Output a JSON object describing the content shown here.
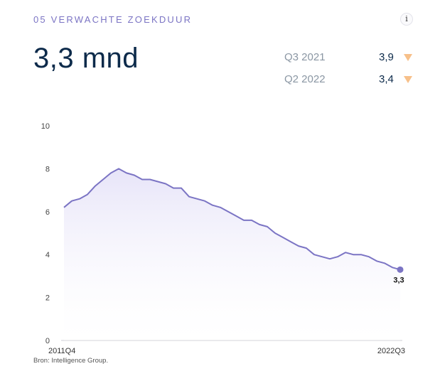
{
  "header": {
    "kicker": "05 VERWACHTE ZOEKDUUR",
    "info_icon": "info-icon",
    "info_glyph": "i"
  },
  "summary": {
    "value": "3,3 mnd"
  },
  "comparisons": [
    {
      "label": "Q3 2021",
      "value": "3,9",
      "direction": "down",
      "icon": "triangle-down-icon",
      "color": "#f7c08a"
    },
    {
      "label": "Q2 2022",
      "value": "3,4",
      "direction": "down",
      "icon": "triangle-down-icon",
      "color": "#f7c08a"
    }
  ],
  "source": "Bron: Intelligence Group.",
  "chart_data": {
    "type": "area",
    "title": "",
    "xlabel": "",
    "ylabel": "",
    "ylim": [
      0,
      10
    ],
    "yticks": [
      "0",
      "2",
      "4",
      "6",
      "8",
      "10"
    ],
    "x_start_label": "2011Q4",
    "x_end_label": "2022Q3",
    "end_value_label": "3,3",
    "grid": false,
    "line_color": "#7b74c4",
    "fill_color": "#ece9fa",
    "series": [
      {
        "values": [
          6.2,
          6.5,
          6.6,
          6.8,
          7.2,
          7.5,
          7.8,
          8.0,
          7.8,
          7.7,
          7.5,
          7.5,
          7.4,
          7.3,
          7.1,
          7.1,
          6.7,
          6.6,
          6.5,
          6.3,
          6.2,
          6.0,
          5.8,
          5.6,
          5.6,
          5.4,
          5.3,
          5.0,
          4.8,
          4.6,
          4.4,
          4.3,
          4.0,
          3.9,
          3.8,
          3.9,
          4.1,
          4.0,
          4.0,
          3.9,
          3.7,
          3.6,
          3.4,
          3.3
        ]
      }
    ]
  }
}
